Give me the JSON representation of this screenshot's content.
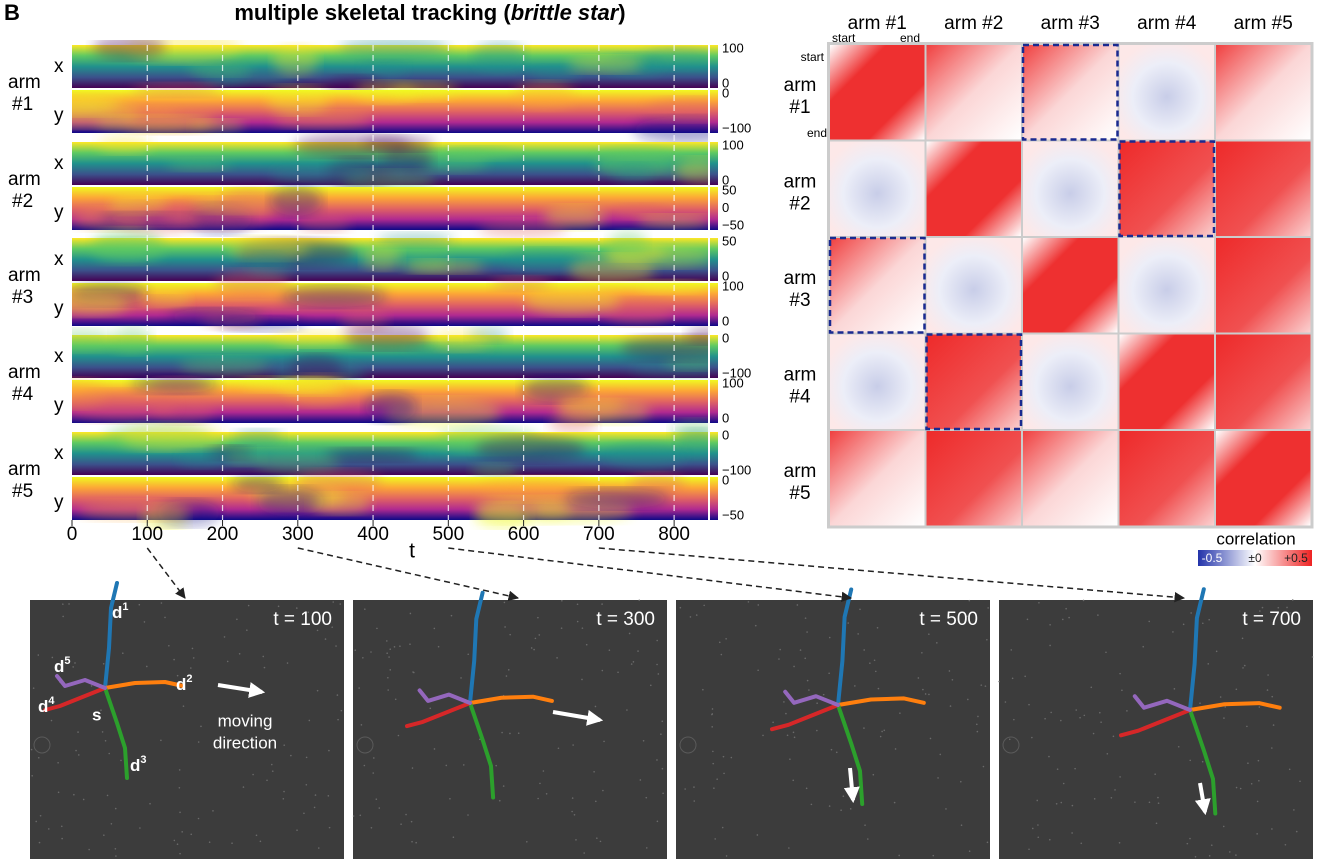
{
  "panel_label": "B",
  "title": {
    "prefix": "multiple skeletal tracking (",
    "italic": "brittle star",
    "suffix": ")"
  },
  "heatmaps": {
    "rows": [
      {
        "arm": "arm",
        "number": "#1",
        "x_label": "x",
        "y_label": "y",
        "x_colorbar": [
          "100",
          "0"
        ],
        "y_colorbar": [
          "0",
          "−100"
        ]
      },
      {
        "arm": "arm",
        "number": "#2",
        "x_label": "x",
        "y_label": "y",
        "x_colorbar": [
          "100",
          "0"
        ],
        "y_colorbar": [
          "50",
          "0",
          "−50"
        ]
      },
      {
        "arm": "arm",
        "number": "#3",
        "x_label": "x",
        "y_label": "y",
        "x_colorbar": [
          "50",
          "0"
        ],
        "y_colorbar": [
          "100",
          "0"
        ]
      },
      {
        "arm": "arm",
        "number": "#4",
        "x_label": "x",
        "y_label": "y",
        "x_colorbar": [
          "0",
          "−100"
        ],
        "y_colorbar": [
          "100",
          "0"
        ]
      },
      {
        "arm": "arm",
        "number": "#5",
        "x_label": "x",
        "y_label": "y",
        "x_colorbar": [
          "0",
          "−100"
        ],
        "y_colorbar": [
          "0",
          "−50"
        ]
      }
    ],
    "t_axis": {
      "label": "t",
      "range": [
        0,
        845
      ],
      "ticks": [
        0,
        100,
        200,
        300,
        400,
        500,
        600,
        700,
        800
      ]
    }
  },
  "matrix": {
    "columns": [
      "arm #1",
      "arm #2",
      "arm #3",
      "arm #4",
      "arm #5"
    ],
    "rows": [
      [
        "arm",
        "#1"
      ],
      [
        "arm",
        "#2"
      ],
      [
        "arm",
        "#3"
      ],
      [
        "arm",
        "#4"
      ],
      [
        "arm",
        "#5"
      ]
    ],
    "start": "start",
    "end": "end",
    "legend": {
      "title": "correlation",
      "ticks": [
        "-0.5",
        "±0",
        "+0.5"
      ]
    }
  },
  "snapshots": {
    "times": [
      "t = 100",
      "t = 300",
      "t = 500",
      "t = 700"
    ],
    "tips": [
      {
        "base": "d",
        "sup": "1"
      },
      {
        "base": "d",
        "sup": "2"
      },
      {
        "base": "d",
        "sup": "3"
      },
      {
        "base": "d",
        "sup": "4"
      },
      {
        "base": "d",
        "sup": "5"
      }
    ],
    "center": "s",
    "direction": [
      "moving",
      "direction"
    ]
  }
}
